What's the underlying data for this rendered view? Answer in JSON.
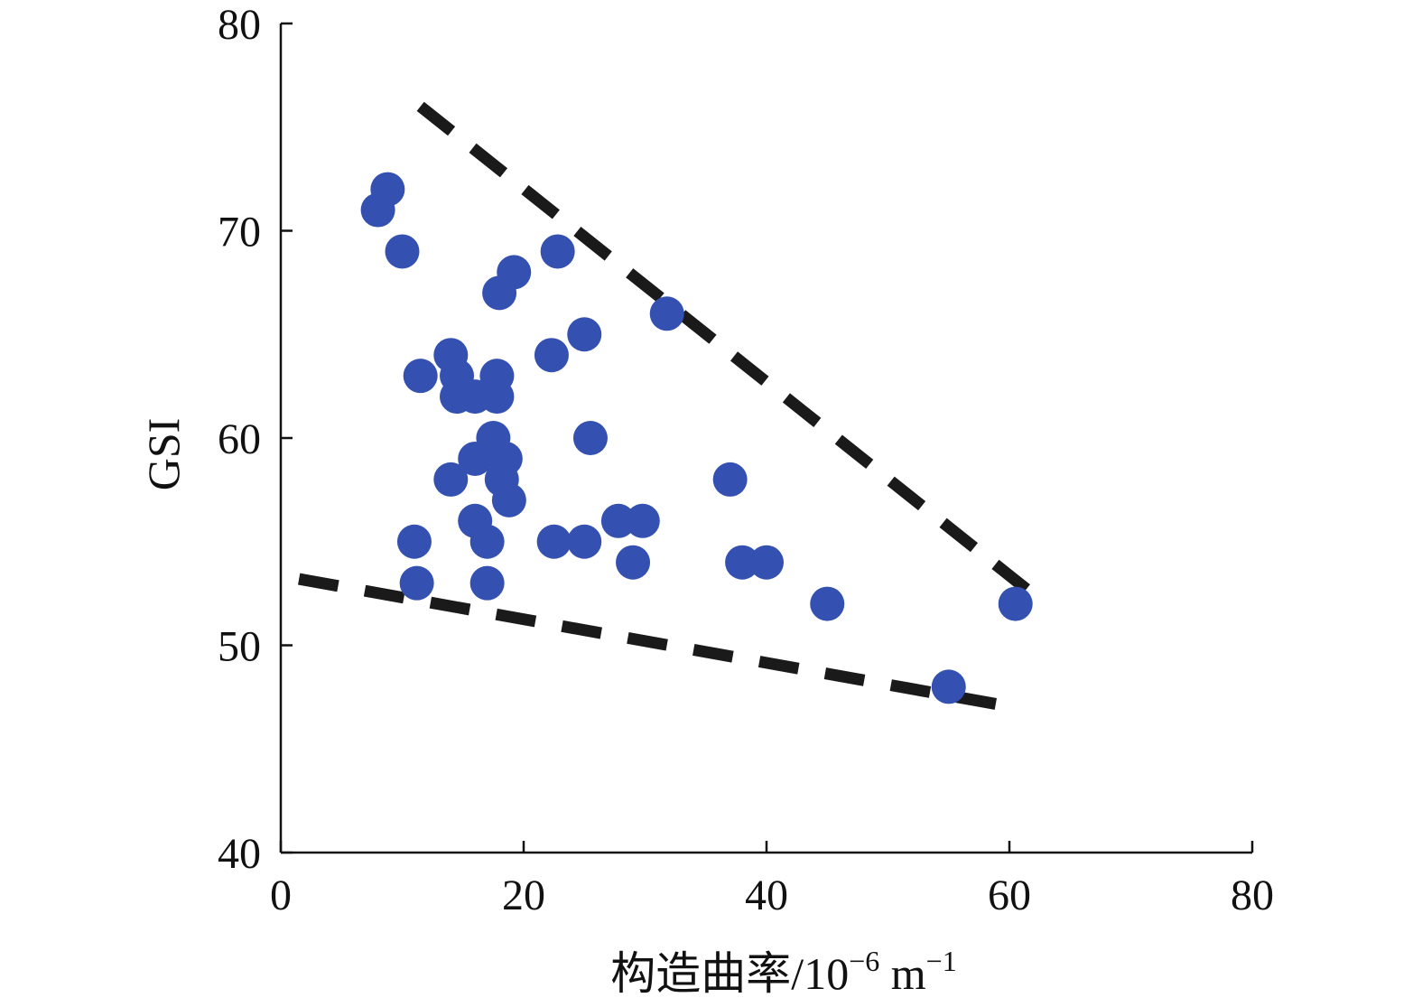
{
  "chart_data": {
    "type": "scatter",
    "title": "",
    "xlabel": "构造曲率/10",
    "xlabel_exp": "−6",
    "xlabel_unit": " m",
    "xlabel_unit_exp": "−1",
    "ylabel": "GSI",
    "xlim": [
      0,
      80
    ],
    "ylim": [
      40,
      80
    ],
    "xticks": [
      0,
      20,
      40,
      60,
      80
    ],
    "yticks": [
      40,
      50,
      60,
      70,
      80
    ],
    "grid": false,
    "point_color": "#3450b0",
    "line_color": "#1a1a1a",
    "points": [
      {
        "x": 8.0,
        "y": 71
      },
      {
        "x": 8.8,
        "y": 72
      },
      {
        "x": 10.0,
        "y": 69
      },
      {
        "x": 11.5,
        "y": 63
      },
      {
        "x": 11.0,
        "y": 55
      },
      {
        "x": 11.2,
        "y": 53
      },
      {
        "x": 14.0,
        "y": 64
      },
      {
        "x": 14.5,
        "y": 63
      },
      {
        "x": 14.5,
        "y": 62
      },
      {
        "x": 16.0,
        "y": 62
      },
      {
        "x": 17.8,
        "y": 63
      },
      {
        "x": 17.8,
        "y": 62
      },
      {
        "x": 14.0,
        "y": 58
      },
      {
        "x": 16.0,
        "y": 59
      },
      {
        "x": 17.5,
        "y": 60
      },
      {
        "x": 18.5,
        "y": 59
      },
      {
        "x": 18.2,
        "y": 58
      },
      {
        "x": 18.8,
        "y": 57
      },
      {
        "x": 16.0,
        "y": 56
      },
      {
        "x": 17.0,
        "y": 55
      },
      {
        "x": 17.0,
        "y": 53
      },
      {
        "x": 18.0,
        "y": 67
      },
      {
        "x": 19.2,
        "y": 68
      },
      {
        "x": 22.3,
        "y": 64
      },
      {
        "x": 22.8,
        "y": 69
      },
      {
        "x": 25.0,
        "y": 65
      },
      {
        "x": 25.5,
        "y": 60
      },
      {
        "x": 22.5,
        "y": 55
      },
      {
        "x": 25.0,
        "y": 55
      },
      {
        "x": 27.8,
        "y": 56
      },
      {
        "x": 29.8,
        "y": 56
      },
      {
        "x": 29.0,
        "y": 54
      },
      {
        "x": 31.8,
        "y": 66
      },
      {
        "x": 37.0,
        "y": 58
      },
      {
        "x": 38.0,
        "y": 54
      },
      {
        "x": 40.0,
        "y": 54
      },
      {
        "x": 45.0,
        "y": 52
      },
      {
        "x": 55.0,
        "y": 48
      },
      {
        "x": 60.5,
        "y": 52
      }
    ],
    "lines": [
      {
        "style": "dashed",
        "x": [
          11.5,
          62.5
        ],
        "y": [
          76,
          52.2
        ]
      },
      {
        "style": "dashed",
        "x": [
          1.5,
          60.5
        ],
        "y": [
          53.2,
          47
        ]
      }
    ]
  }
}
